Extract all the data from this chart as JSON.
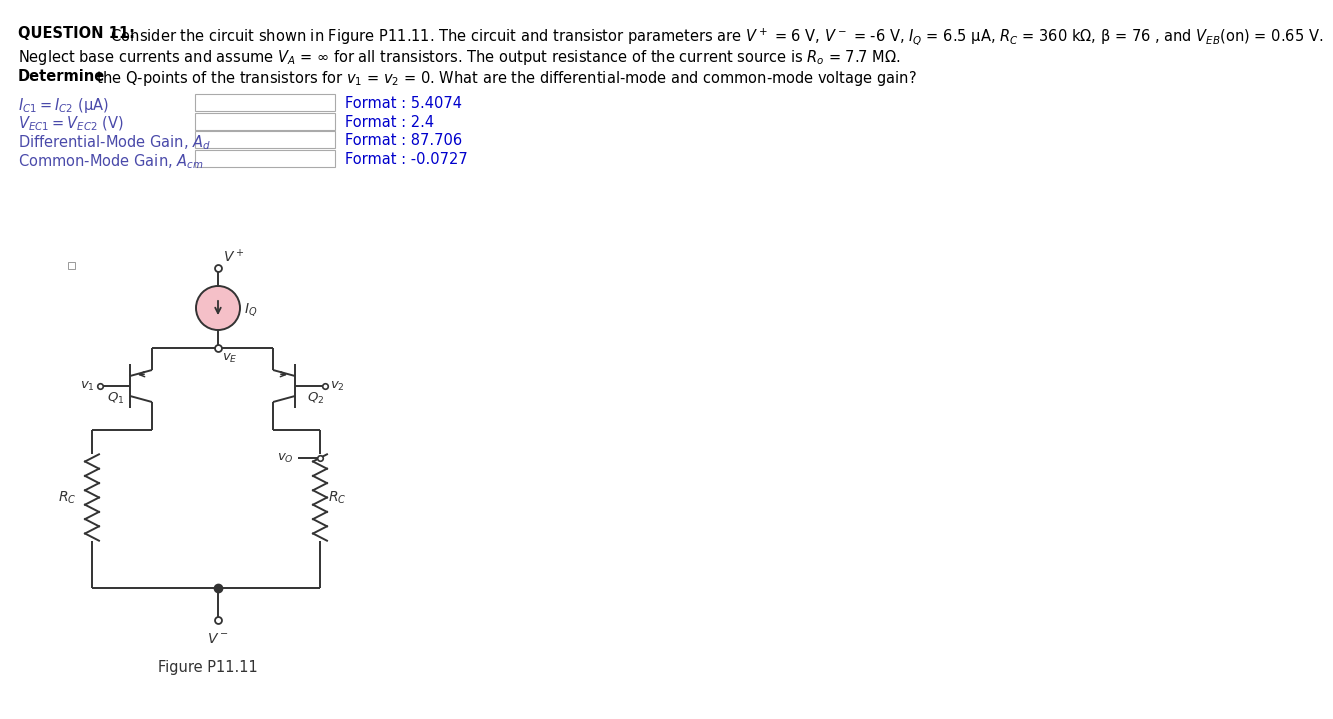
{
  "bg_color": "#ffffff",
  "text_color": "#000000",
  "label_color": "#4a4aaa",
  "format_color": "#0000cc",
  "line_color": "#333333",
  "circuit_color": "#333333",
  "cs_fill": "#f5c0c8",
  "box_edge": "#aaaaaa",
  "vp_label": "$V^+$",
  "vm_label": "$V^-$",
  "iq_label": "$I_Q$",
  "ve_label": "$v_E$",
  "v1_label": "$v_1$",
  "v2_label": "$v_2$",
  "vo_label": "$v_O$",
  "q1_label": "$Q_1$",
  "q2_label": "$Q_2$",
  "rc_label": "$R_C$",
  "fig_label": "Figure P11.11",
  "row_labels": [
    "$I_{C1} = I_{C2}$ (μA)",
    "$V_{EC1} = V_{EC2}$ (V)",
    "Differential-Mode Gain, $A_d$",
    "Common-Mode Gain, $A_{cm}$"
  ],
  "formats": [
    "Format : 5.4074",
    "Format : 2.4",
    "Format : 87.706",
    "Format : -0.0727"
  ],
  "line1_bold": "QUESTION 11:",
  "line1_rest": " Consider the circuit shown in Figure P11.11. The circuit and transistor parameters are $V^+$ = 6 V, $V^-$ = -6 V, $I_Q$ = 6.5 μA, $R_C$ = 360 kΩ, β = 76 , and $V_{EB}$(on) = 0.65 V.",
  "line2": "Neglect base currents and assume $V_A$ = ∞ for all transistors. The output resistance of the current source is $R_o$ = 7.7 MΩ.",
  "line3_bold": "Determine",
  "line3_rest": " the Q-points of the transistors for $v_1$ = $v_2$ = 0. What are the differential-mode and common-mode voltage gain?"
}
